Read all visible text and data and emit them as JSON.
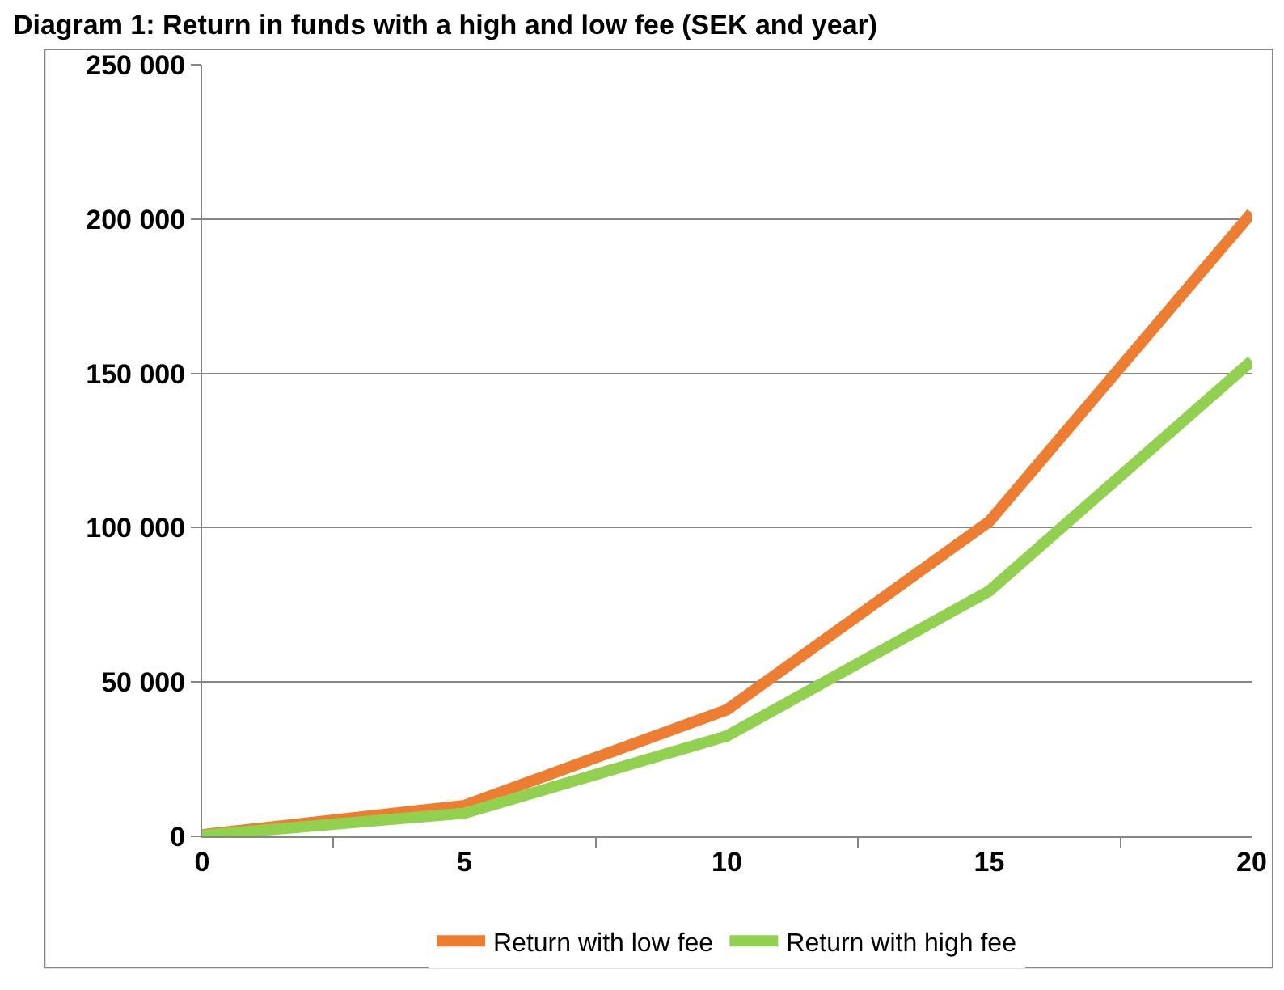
{
  "chart_data": {
    "type": "line",
    "title": "Diagram 1: Return in funds with a high and low fee (SEK and year)",
    "categories": [
      "0",
      "5",
      "10",
      "15",
      "20"
    ],
    "series": [
      {
        "name": "Return with low fee",
        "color": "#ed7d31",
        "values": [
          500,
          10000,
          41000,
          102000,
          202000
        ]
      },
      {
        "name": "Return with high fee",
        "color": "#92d050",
        "values": [
          300,
          7500,
          32500,
          79500,
          154000
        ]
      }
    ],
    "ylim": [
      0,
      250000
    ],
    "yticks": [
      {
        "value": 0,
        "label": "0"
      },
      {
        "value": 50000,
        "label": "50 000"
      },
      {
        "value": 100000,
        "label": "100 000"
      },
      {
        "value": 150000,
        "label": "150 000"
      },
      {
        "value": 200000,
        "label": "200 000"
      },
      {
        "value": 250000,
        "label": "250 000"
      }
    ],
    "grid": "y",
    "legend": "bottom",
    "marker": "none",
    "line_style": "solid"
  }
}
